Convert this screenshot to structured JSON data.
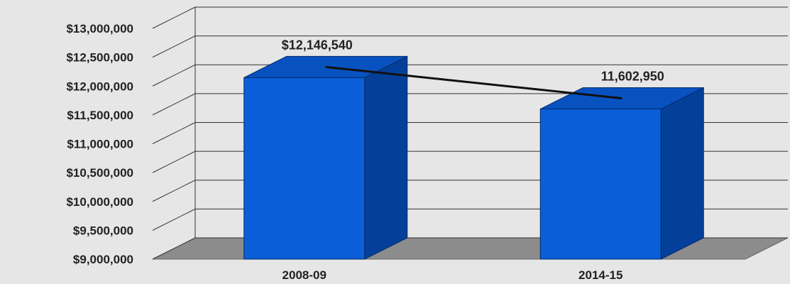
{
  "chart_data": {
    "type": "bar",
    "categories": [
      "2008-09",
      "2014-15"
    ],
    "values": [
      12146540,
      11602950
    ],
    "data_labels": [
      "$12,146,540",
      "11,602,950"
    ],
    "y_tick_labels": [
      "$9,000,000",
      "$9,500,000",
      "$10,000,000",
      "$10,500,000",
      "$11,000,000",
      "$11,500,000",
      "$12,000,000",
      "$12,500,000",
      "$13,000,000"
    ],
    "y_ticks": [
      9000000,
      9500000,
      10000000,
      10500000,
      11000000,
      11500000,
      12000000,
      12500000,
      13000000
    ],
    "ylim": [
      9000000,
      13000000
    ],
    "title": "",
    "xlabel": "",
    "ylabel": "",
    "grid": true,
    "trend_line": true,
    "style": "3d-column"
  },
  "colors": {
    "background": "#e6e6e6",
    "bar_front": "#0a5fd8",
    "bar_side": "#04409a",
    "bar_top": "#0852c0",
    "floor": "#8c8c8c",
    "grid": "#333333",
    "trend_line": "#111111"
  }
}
